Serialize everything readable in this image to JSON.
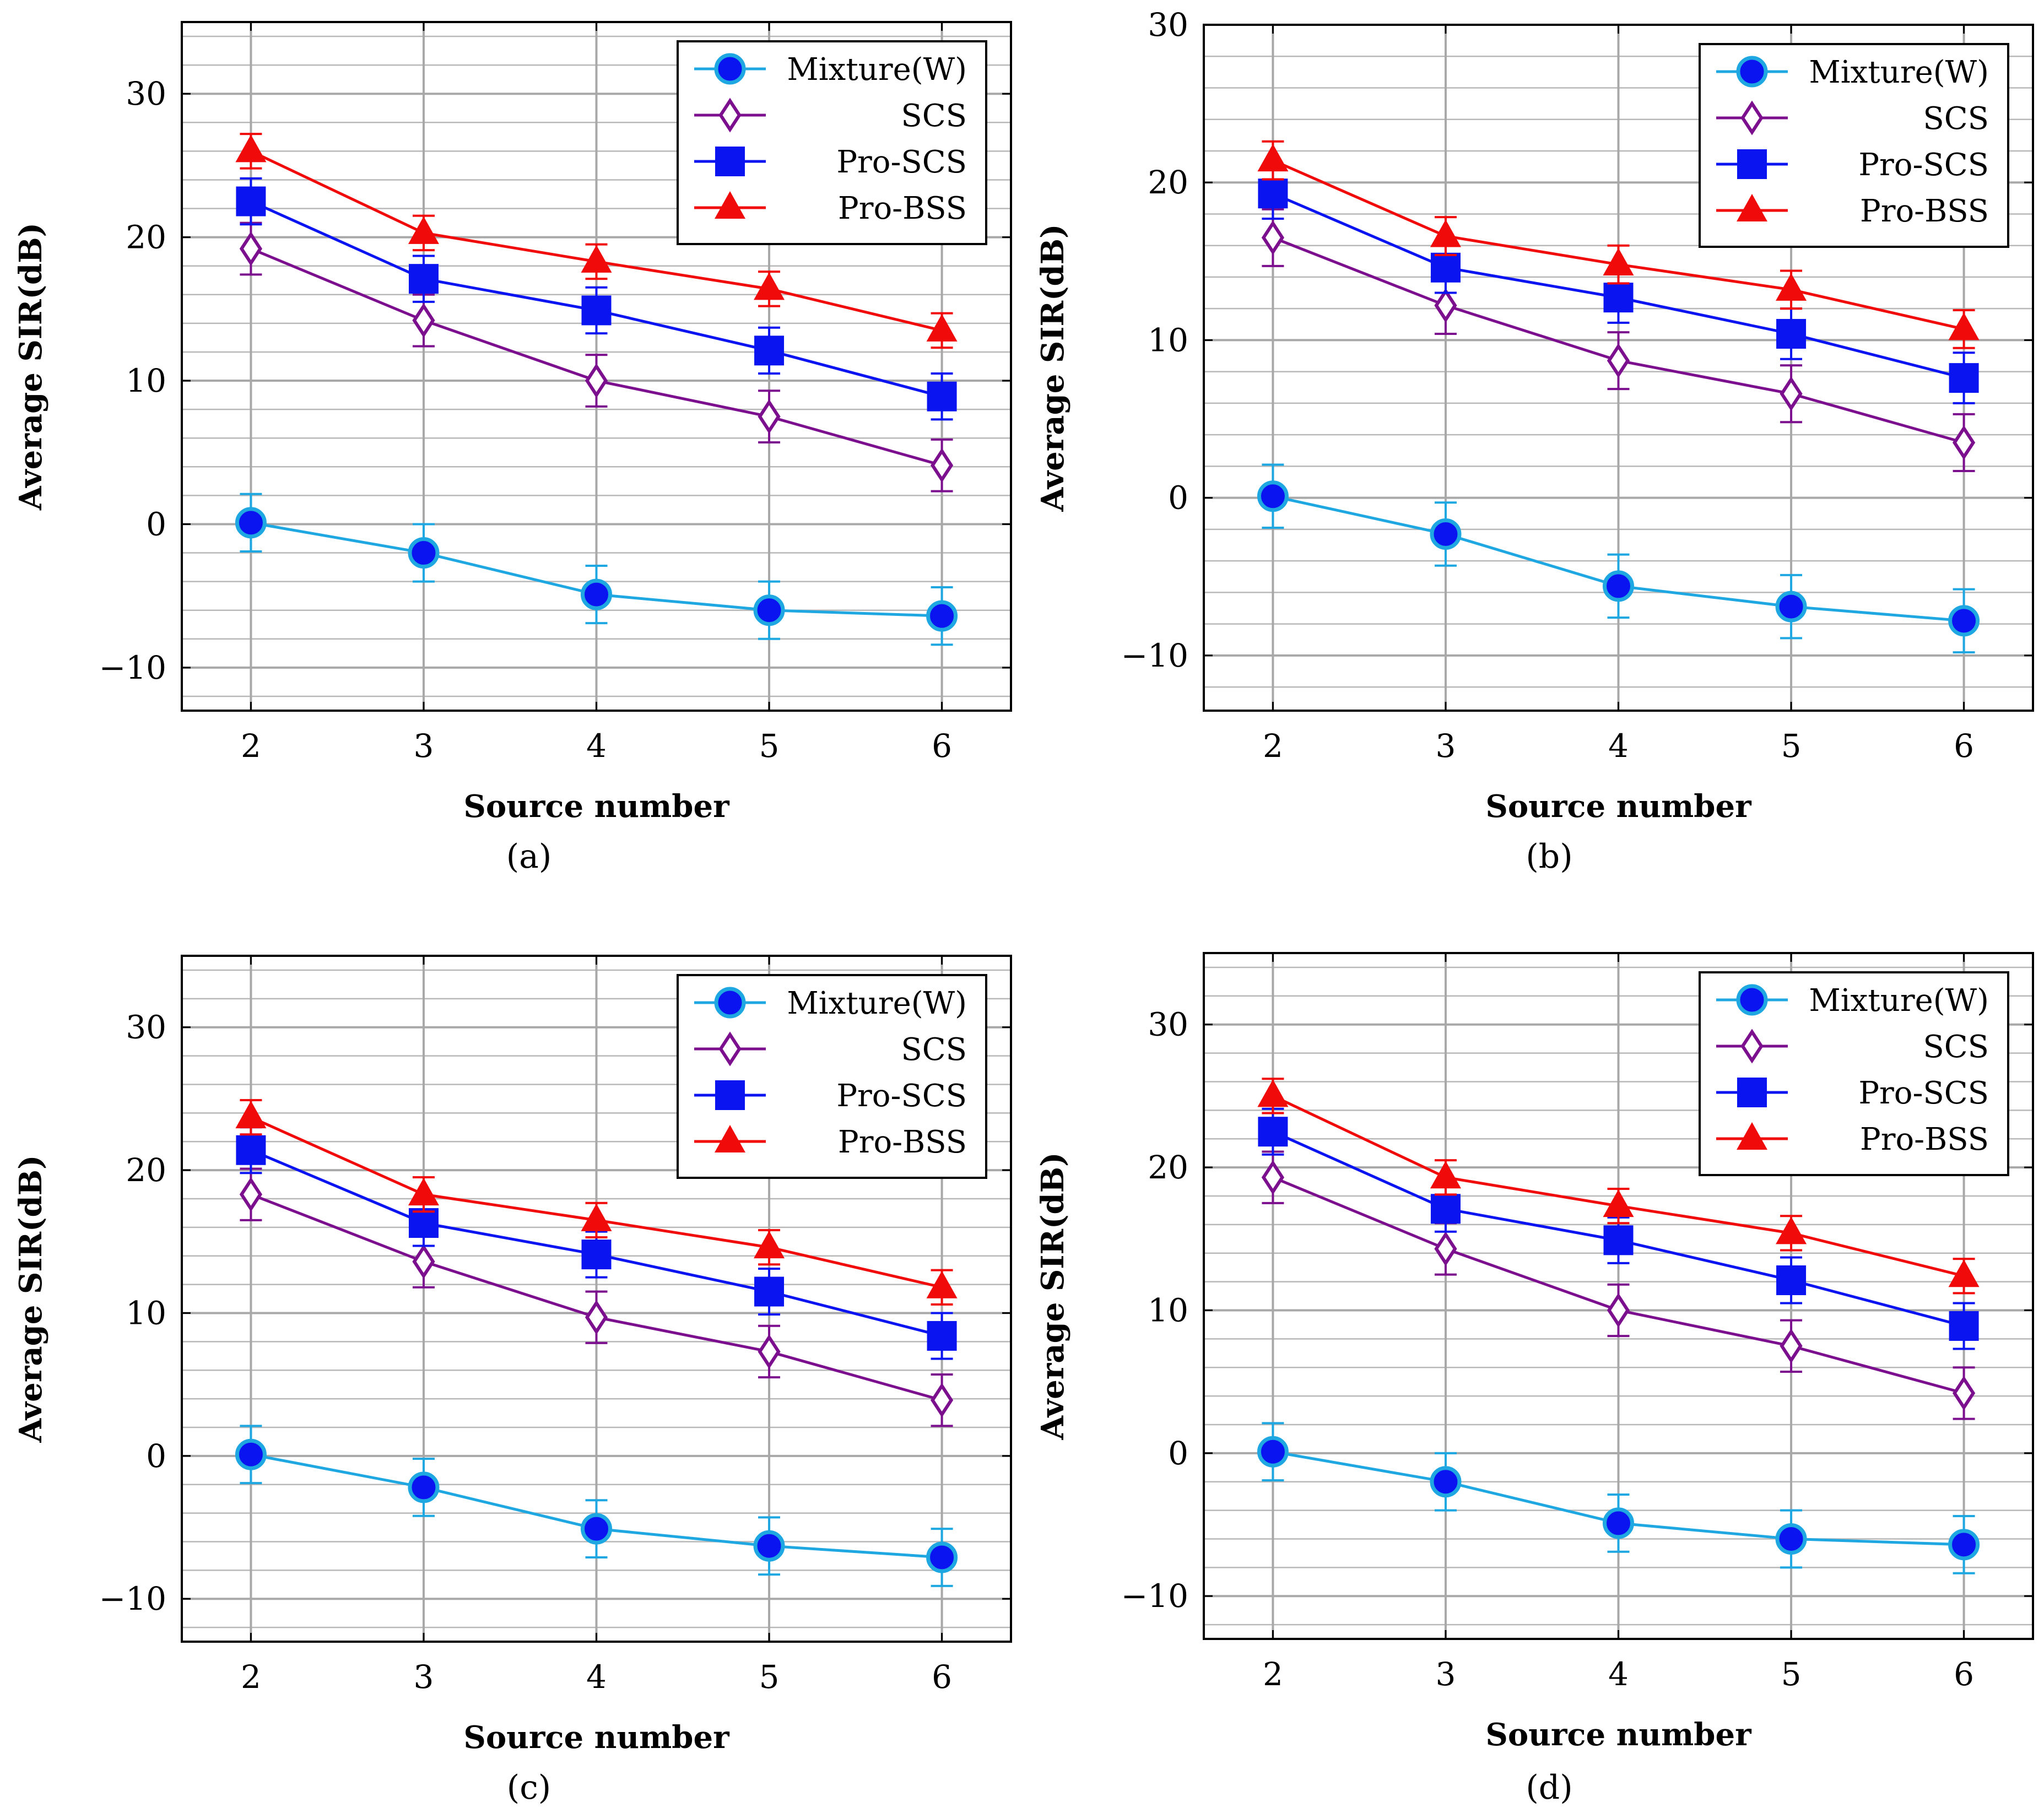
{
  "chart_data": [
    {
      "type": "line",
      "caption": "(a)",
      "xlabel": "Source number",
      "ylabel": "Average SIR(dB)",
      "x": [
        2,
        3,
        4,
        5,
        6
      ],
      "xlim": [
        1.6,
        6.4
      ],
      "ylim": [
        -13,
        35
      ],
      "yticks": [
        -10,
        0,
        10,
        20,
        30
      ],
      "grid": true,
      "legend_position": "top-right",
      "series": [
        {
          "name": "Mixture(W)",
          "color": "#1ea7e1",
          "marker": "circle",
          "values": [
            0.1,
            -2.0,
            -4.9,
            -6.0,
            -6.4
          ],
          "errors": [
            2.0,
            2.0,
            2.0,
            2.0,
            2.0
          ]
        },
        {
          "name": "SCS",
          "color": "#7b0f8e",
          "marker": "diamond",
          "values": [
            19.2,
            14.2,
            10.0,
            7.5,
            4.1
          ],
          "errors": [
            1.8,
            1.8,
            1.8,
            1.8,
            1.8
          ]
        },
        {
          "name": "Pro-SCS",
          "color": "#0a14f0",
          "marker": "square",
          "values": [
            22.5,
            17.1,
            14.9,
            12.1,
            8.9
          ],
          "errors": [
            1.6,
            1.6,
            1.6,
            1.6,
            1.6
          ]
        },
        {
          "name": "Pro-BSS",
          "color": "#f00a0a",
          "marker": "triangle",
          "values": [
            26.0,
            20.3,
            18.3,
            16.4,
            13.5
          ],
          "errors": [
            1.2,
            1.2,
            1.2,
            1.2,
            1.2
          ]
        }
      ]
    },
    {
      "type": "line",
      "caption": "(b)",
      "xlabel": "Source number",
      "ylabel": "Average SIR(dB)",
      "x": [
        2,
        3,
        4,
        5,
        6
      ],
      "xlim": [
        1.6,
        6.4
      ],
      "ylim": [
        -13.5,
        30
      ],
      "yticks": [
        -10,
        0,
        10,
        20,
        30
      ],
      "grid": true,
      "legend_position": "top-right",
      "series": [
        {
          "name": "Mixture(W)",
          "color": "#1ea7e1",
          "marker": "circle",
          "values": [
            0.1,
            -2.3,
            -5.6,
            -6.9,
            -7.8
          ],
          "errors": [
            2.0,
            2.0,
            2.0,
            2.0,
            2.0
          ]
        },
        {
          "name": "SCS",
          "color": "#7b0f8e",
          "marker": "diamond",
          "values": [
            16.5,
            12.2,
            8.7,
            6.6,
            3.5
          ],
          "errors": [
            1.8,
            1.8,
            1.8,
            1.8,
            1.8
          ]
        },
        {
          "name": "Pro-SCS",
          "color": "#0a14f0",
          "marker": "square",
          "values": [
            19.3,
            14.6,
            12.7,
            10.4,
            7.6
          ],
          "errors": [
            1.6,
            1.6,
            1.6,
            1.6,
            1.6
          ]
        },
        {
          "name": "Pro-BSS",
          "color": "#f00a0a",
          "marker": "triangle",
          "values": [
            21.4,
            16.6,
            14.8,
            13.2,
            10.7
          ],
          "errors": [
            1.2,
            1.2,
            1.2,
            1.2,
            1.2
          ]
        }
      ]
    },
    {
      "type": "line",
      "caption": "(c)",
      "xlabel": "Source number",
      "ylabel": "Average SIR(dB)",
      "x": [
        2,
        3,
        4,
        5,
        6
      ],
      "xlim": [
        1.6,
        6.4
      ],
      "ylim": [
        -13,
        35
      ],
      "yticks": [
        -10,
        0,
        10,
        20,
        30
      ],
      "grid": true,
      "legend_position": "top-right",
      "series": [
        {
          "name": "Mixture(W)",
          "color": "#1ea7e1",
          "marker": "circle",
          "values": [
            0.1,
            -2.2,
            -5.1,
            -6.3,
            -7.1
          ],
          "errors": [
            2.0,
            2.0,
            2.0,
            2.0,
            2.0
          ]
        },
        {
          "name": "SCS",
          "color": "#7b0f8e",
          "marker": "diamond",
          "values": [
            18.3,
            13.6,
            9.7,
            7.3,
            3.9
          ],
          "errors": [
            1.8,
            1.8,
            1.8,
            1.8,
            1.8
          ]
        },
        {
          "name": "Pro-SCS",
          "color": "#0a14f0",
          "marker": "square",
          "values": [
            21.4,
            16.3,
            14.1,
            11.5,
            8.4
          ],
          "errors": [
            1.6,
            1.6,
            1.6,
            1.6,
            1.6
          ]
        },
        {
          "name": "Pro-BSS",
          "color": "#f00a0a",
          "marker": "triangle",
          "values": [
            23.7,
            18.3,
            16.5,
            14.6,
            11.8
          ],
          "errors": [
            1.2,
            1.2,
            1.2,
            1.2,
            1.2
          ]
        }
      ]
    },
    {
      "type": "line",
      "caption": "(d)",
      "xlabel": "Source number",
      "ylabel": "Average SIR(dB)",
      "x": [
        2,
        3,
        4,
        5,
        6
      ],
      "xlim": [
        1.6,
        6.4
      ],
      "ylim": [
        -13,
        35
      ],
      "yticks": [
        -10,
        0,
        10,
        20,
        30
      ],
      "grid": true,
      "legend_position": "top-right",
      "series": [
        {
          "name": "Mixture(W)",
          "color": "#1ea7e1",
          "marker": "circle",
          "values": [
            0.1,
            -2.0,
            -4.9,
            -6.0,
            -6.4
          ],
          "errors": [
            2.0,
            2.0,
            2.0,
            2.0,
            2.0
          ]
        },
        {
          "name": "SCS",
          "color": "#7b0f8e",
          "marker": "diamond",
          "values": [
            19.3,
            14.3,
            10.0,
            7.5,
            4.2
          ],
          "errors": [
            1.8,
            1.8,
            1.8,
            1.8,
            1.8
          ]
        },
        {
          "name": "Pro-SCS",
          "color": "#0a14f0",
          "marker": "square",
          "values": [
            22.5,
            17.1,
            14.9,
            12.1,
            8.9
          ],
          "errors": [
            1.6,
            1.6,
            1.6,
            1.6,
            1.6
          ]
        },
        {
          "name": "Pro-BSS",
          "color": "#f00a0a",
          "marker": "triangle",
          "values": [
            25.0,
            19.3,
            17.3,
            15.4,
            12.4
          ],
          "errors": [
            1.2,
            1.2,
            1.2,
            1.2,
            1.2
          ]
        }
      ]
    }
  ]
}
